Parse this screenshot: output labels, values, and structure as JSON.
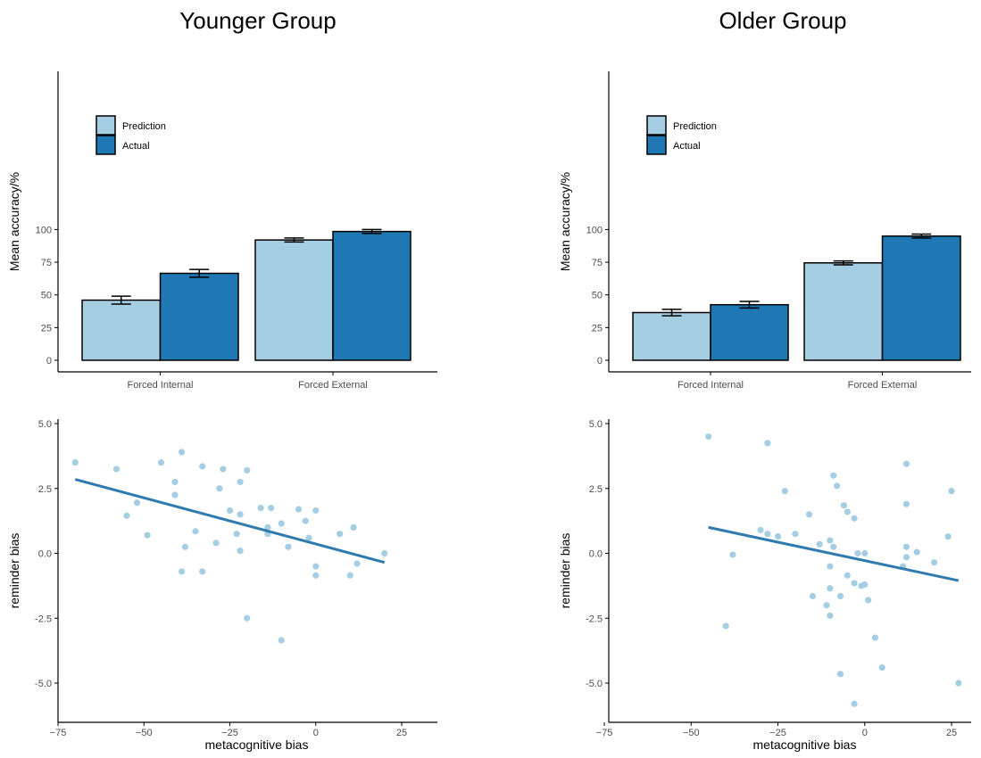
{
  "titles": [
    "Younger Group",
    "Older Group"
  ],
  "colors": {
    "prediction": "#a6cee3",
    "actual": "#1f78b4",
    "points": "#a6cee3",
    "line": "#2f7bb0",
    "axis": "#000000"
  },
  "chart_data": [
    {
      "panel": "Younger Group bars",
      "type": "bar",
      "categories": [
        "Forced Internal",
        "Forced External"
      ],
      "series": [
        {
          "name": "Prediction",
          "values": [
            46,
            92
          ],
          "errors": [
            3,
            1.5
          ]
        },
        {
          "name": "Actual",
          "values": [
            66.5,
            98.5
          ],
          "errors": [
            3,
            1.5
          ]
        }
      ],
      "ylabel": "Mean accuracy/%",
      "ylim": [
        0,
        110
      ],
      "yticks": [
        0,
        25,
        50,
        75,
        100
      ],
      "legend": "top-left",
      "grid": false
    },
    {
      "panel": "Older Group bars",
      "type": "bar",
      "categories": [
        "Forced Internal",
        "Forced External"
      ],
      "series": [
        {
          "name": "Prediction",
          "values": [
            36.5,
            74.5
          ],
          "errors": [
            2.5,
            1.5
          ]
        },
        {
          "name": "Actual",
          "values": [
            42.5,
            95
          ],
          "errors": [
            2.5,
            1.5
          ]
        }
      ],
      "ylabel": "Mean accuracy/%",
      "ylim": [
        0,
        110
      ],
      "yticks": [
        0,
        25,
        50,
        75,
        100
      ],
      "legend": "top-left",
      "grid": false
    },
    {
      "panel": "Younger Group scatter",
      "type": "scatter",
      "xlabel": "metacognitive bias",
      "ylabel": "reminder bias",
      "xlim": [
        -75,
        35
      ],
      "ylim": [
        -6.5,
        5
      ],
      "xticks": [
        -75,
        -50,
        -25,
        0,
        25
      ],
      "yticks": [
        -5.0,
        -2.5,
        0.0,
        2.5,
        5.0
      ],
      "yticklabels": [
        "-5.0",
        "-2.5",
        "0.0",
        "2.5",
        "5.0"
      ],
      "points": [
        [
          -70,
          3.5
        ],
        [
          -58,
          3.25
        ],
        [
          -55,
          1.45
        ],
        [
          -52,
          1.95
        ],
        [
          -49,
          0.7
        ],
        [
          -45,
          3.5
        ],
        [
          -41,
          2.75
        ],
        [
          -41,
          2.25
        ],
        [
          -39,
          3.9
        ],
        [
          -38,
          0.25
        ],
        [
          -39,
          -0.7
        ],
        [
          -35,
          0.85
        ],
        [
          -33,
          3.35
        ],
        [
          -33,
          -0.7
        ],
        [
          -29,
          0.4
        ],
        [
          -28,
          2.5
        ],
        [
          -27,
          3.25
        ],
        [
          -25,
          1.65
        ],
        [
          -23,
          0.75
        ],
        [
          -22,
          2.75
        ],
        [
          -22,
          1.5
        ],
        [
          -22,
          0.1
        ],
        [
          -20,
          3.2
        ],
        [
          -20,
          -2.5
        ],
        [
          -16,
          1.75
        ],
        [
          -14,
          1.0
        ],
        [
          -14,
          0.75
        ],
        [
          -13,
          1.75
        ],
        [
          -10,
          1.15
        ],
        [
          -10,
          -3.35
        ],
        [
          -8,
          0.25
        ],
        [
          -5,
          1.7
        ],
        [
          -3,
          1.25
        ],
        [
          -2,
          0.6
        ],
        [
          0,
          1.65
        ],
        [
          0,
          -0.5
        ],
        [
          0,
          -0.85
        ],
        [
          7,
          0.75
        ],
        [
          10,
          -0.85
        ],
        [
          11,
          1.0
        ],
        [
          12,
          -0.4
        ],
        [
          20,
          0.0
        ]
      ],
      "fit": {
        "x": [
          -70,
          20
        ],
        "y": [
          2.85,
          -0.35
        ]
      }
    },
    {
      "panel": "Older Group scatter",
      "type": "scatter",
      "xlabel": "metacognitive bias",
      "ylabel": "reminder bias",
      "xlim": [
        -75,
        30
      ],
      "ylim": [
        -6.0,
        5
      ],
      "xticks": [
        -75,
        -50,
        -25,
        0,
        25
      ],
      "yticks": [
        -5.0,
        -2.5,
        0.0,
        2.5,
        5.0
      ],
      "yticklabels": [
        "-5.0",
        "-2.5",
        "0.0",
        "2.5",
        "5.0"
      ],
      "points": [
        [
          -45,
          4.5
        ],
        [
          -40,
          -2.8
        ],
        [
          -38,
          -0.05
        ],
        [
          -30,
          0.9
        ],
        [
          -28,
          0.75
        ],
        [
          -28,
          4.25
        ],
        [
          -25,
          0.65
        ],
        [
          -23,
          2.4
        ],
        [
          -20,
          0.75
        ],
        [
          -16,
          1.5
        ],
        [
          -15,
          -1.65
        ],
        [
          -13,
          0.35
        ],
        [
          -11,
          -2.0
        ],
        [
          -10,
          0.5
        ],
        [
          -10,
          -0.5
        ],
        [
          -10,
          -1.35
        ],
        [
          -10,
          -2.4
        ],
        [
          -9,
          3.0
        ],
        [
          -9,
          0.25
        ],
        [
          -8,
          2.6
        ],
        [
          -7,
          -1.65
        ],
        [
          -7,
          -4.65
        ],
        [
          -6,
          1.85
        ],
        [
          -5,
          -0.85
        ],
        [
          -5,
          1.6
        ],
        [
          -3,
          1.35
        ],
        [
          -3,
          -1.15
        ],
        [
          -3,
          -5.8
        ],
        [
          -2,
          0.0
        ],
        [
          -1,
          -1.25
        ],
        [
          0,
          0.0
        ],
        [
          0,
          -1.2
        ],
        [
          1,
          -1.8
        ],
        [
          3,
          -3.25
        ],
        [
          5,
          -4.4
        ],
        [
          11,
          -0.5
        ],
        [
          12,
          -0.15
        ],
        [
          12,
          0.25
        ],
        [
          12,
          1.9
        ],
        [
          12,
          3.45
        ],
        [
          15,
          0.05
        ],
        [
          20,
          -0.35
        ],
        [
          24,
          0.65
        ],
        [
          25,
          2.4
        ],
        [
          27,
          -5.0
        ]
      ],
      "fit": {
        "x": [
          -45,
          27
        ],
        "y": [
          1.0,
          -1.05
        ]
      }
    }
  ]
}
